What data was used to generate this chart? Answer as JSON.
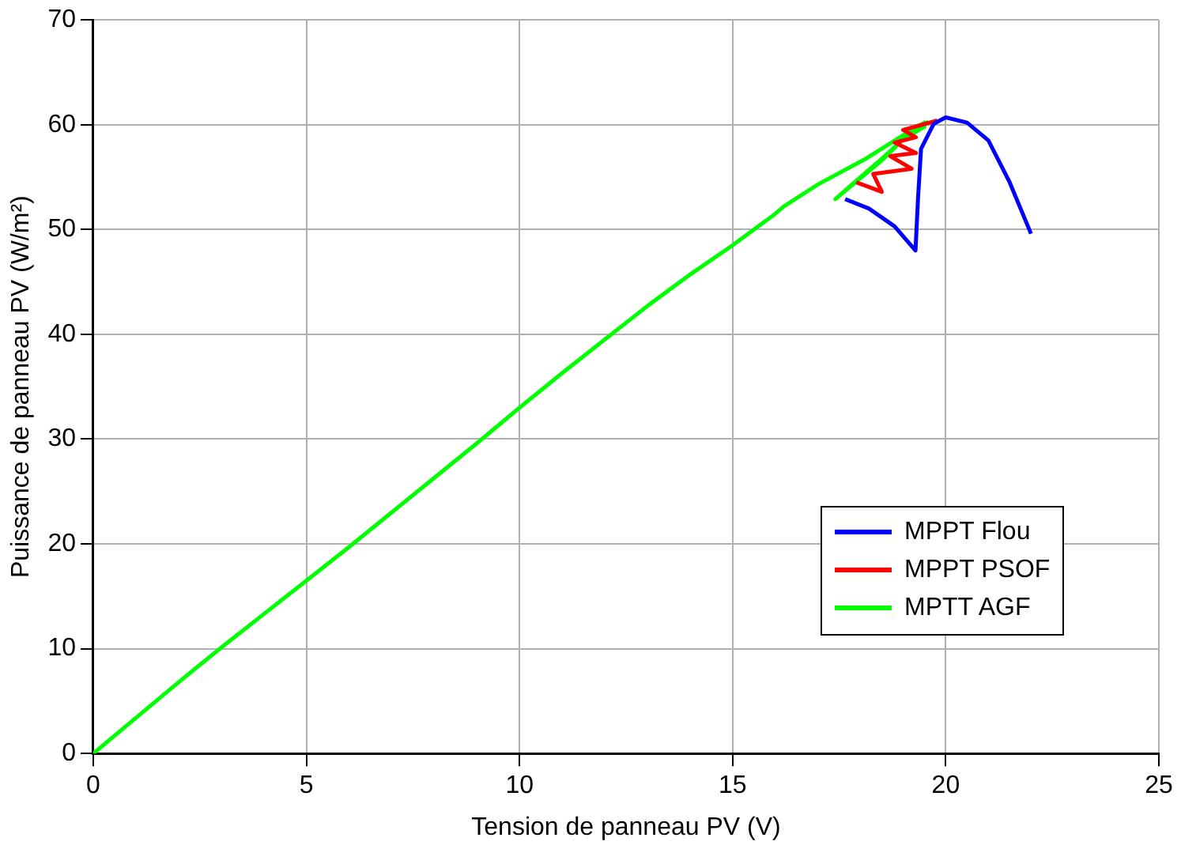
{
  "chart_data": {
    "type": "line",
    "xlabel": "Tension de panneau PV (V)",
    "ylabel": "Puissance de panneau PV (W/m²)",
    "xlim": [
      0,
      25
    ],
    "xticks": [
      0,
      5,
      10,
      15,
      20,
      25
    ],
    "ylim": [
      0,
      70
    ],
    "yticks": [
      0,
      10,
      20,
      30,
      40,
      50,
      60,
      70
    ],
    "grid": true,
    "legend": "bottom right",
    "series": [
      {
        "name": "MPPT Flou",
        "color": "#0000ff",
        "x": [
          17.64,
          18.2,
          18.8,
          19.29,
          19.35,
          19.42,
          19.72,
          20,
          20.5,
          21,
          21.5,
          22
        ],
        "values": [
          52.9,
          52,
          50.3,
          48,
          53,
          57.7,
          60.1,
          60.7,
          60.2,
          58.5,
          54.5,
          49.6
        ]
      },
      {
        "name": "MPPT PSOF",
        "color": "#ff0000",
        "x": [
          17.9,
          18.5,
          18.3,
          19.2,
          18.7,
          19.3,
          18.8,
          19.3,
          19,
          19.8
        ],
        "values": [
          54.5,
          53.6,
          55.3,
          55.8,
          57,
          57.3,
          58.3,
          58.8,
          59.5,
          60.4
        ]
      },
      {
        "name": "MPTT AGF",
        "color": "#00ff00",
        "x": [
          0,
          1,
          2,
          3,
          4,
          5,
          6,
          7,
          8,
          9,
          10,
          11,
          12,
          13,
          14,
          15,
          16,
          16.2,
          17,
          18.1,
          19,
          19.5,
          19.5,
          19,
          18.5,
          18,
          17.41,
          17.8,
          18.4,
          19,
          19.6
        ],
        "values": [
          0,
          3.4,
          6.8,
          10.1,
          13.3,
          16.5,
          19.7,
          23,
          26.3,
          29.6,
          33,
          36.3,
          39.5,
          42.7,
          45.7,
          48.5,
          51.5,
          52.2,
          54.3,
          56.7,
          59,
          60.2,
          59.8,
          58.6,
          56.6,
          54.9,
          52.9,
          54.3,
          56.4,
          58.6,
          60.3
        ]
      }
    ]
  }
}
